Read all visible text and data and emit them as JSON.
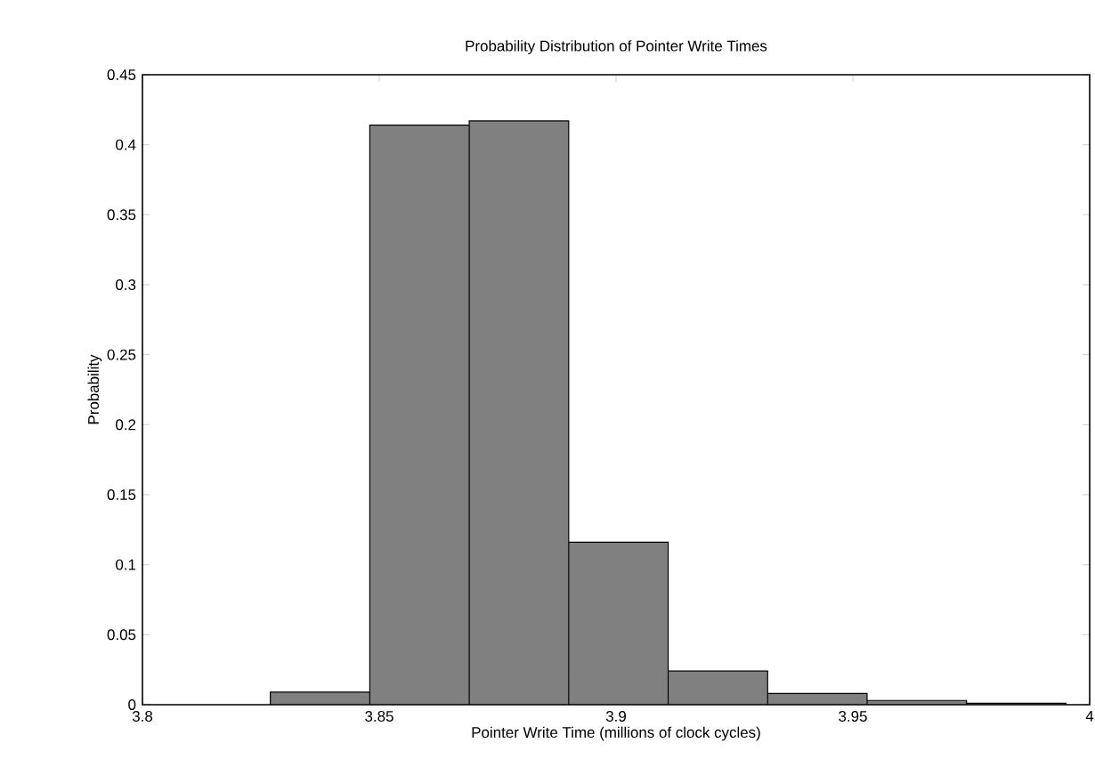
{
  "chart_data": {
    "type": "histogram",
    "title": "Probability Distribution of Pointer Write Times",
    "xlabel": "Pointer Write Time (millions of clock cycles)",
    "ylabel": "Probability",
    "bins": [
      3.827,
      3.848,
      3.869,
      3.89,
      3.911,
      3.932,
      3.953,
      3.974,
      3.995
    ],
    "values": [
      0.009,
      0.414,
      0.417,
      0.116,
      0.024,
      0.008,
      0.003,
      0.001
    ],
    "color": "#808080",
    "xlim": [
      3.8,
      4
    ],
    "ylim": [
      0,
      0.45
    ],
    "xticks": [
      3.8,
      3.85,
      3.9,
      3.95,
      4
    ],
    "yticks": [
      0,
      0.05,
      0.1,
      0.15,
      0.2,
      0.25,
      0.3,
      0.35,
      0.4,
      0.45
    ]
  }
}
